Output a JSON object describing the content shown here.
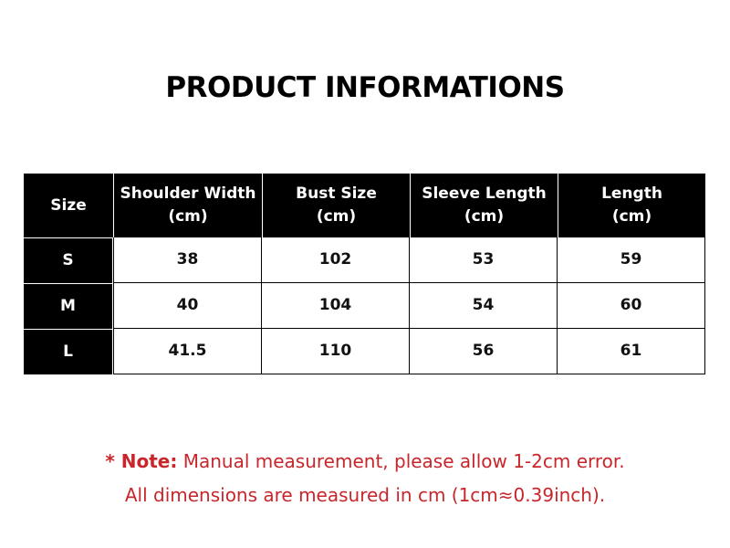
{
  "title": "PRODUCT INFORMATIONS",
  "table": {
    "headers": [
      {
        "line1": "Size",
        "line2": ""
      },
      {
        "line1": "Shoulder Width",
        "line2": "(cm)"
      },
      {
        "line1": "Bust Size",
        "line2": "(cm)"
      },
      {
        "line1": "Sleeve Length",
        "line2": "(cm)"
      },
      {
        "line1": "Length",
        "line2": "(cm)"
      }
    ],
    "rows": [
      [
        "S",
        "38",
        "102",
        "53",
        "59"
      ],
      [
        "M",
        "40",
        "104",
        "54",
        "60"
      ],
      [
        "L",
        "41.5",
        "110",
        "56",
        "61"
      ]
    ]
  },
  "note": {
    "label": "* Note:",
    "line1": "Manual measurement, please allow 1-2cm error.",
    "line2": "All dimensions are measured in cm (1cm≈0.39inch)."
  },
  "colors": {
    "header_bg": "#000000",
    "note": "#c8262b"
  }
}
